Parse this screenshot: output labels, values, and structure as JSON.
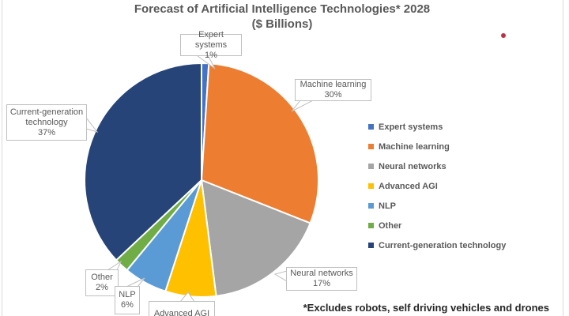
{
  "title": {
    "line1": "Forecast of Artificial Intelligence Technologies* 2028",
    "line2": "($ Billions)"
  },
  "footnote": "*Excludes robots, self driving vehicles and drones",
  "chart_data": {
    "type": "pie",
    "title": "Forecast of Artificial Intelligence Technologies* 2028 ($ Billions)",
    "categories": [
      "Expert systems",
      "Machine learning",
      "Neural networks",
      "Advanced AGI",
      "NLP",
      "Other",
      "Current-generation technology"
    ],
    "values": [
      1,
      30,
      17,
      7,
      6,
      2,
      37
    ],
    "unit": "percent share",
    "colors": [
      "#4472C4",
      "#ED7D31",
      "#A5A5A5",
      "#FFC000",
      "#5B9BD5",
      "#70AD47",
      "#264478"
    ],
    "start_angle_deg": 0,
    "direction": "clockwise",
    "legend_position": "right",
    "slice_border_color": "#FFFFFF",
    "note": "Advanced AGI callout is cut off at the image bottom; its 7% share is implied since shares sum to 100%"
  },
  "callouts": {
    "expert_systems": {
      "lines": [
        "Expert systems",
        "1%"
      ]
    },
    "machine_learning": {
      "lines": [
        "Machine learning",
        "30%"
      ]
    },
    "current_generation": {
      "lines": [
        "Current-generation",
        "technology",
        "37%"
      ]
    },
    "other": {
      "lines": [
        "Other",
        "2%"
      ]
    },
    "nlp": {
      "lines": [
        "NLP",
        "6%"
      ]
    },
    "advanced_agi": {
      "lines": [
        "Advanced AGI"
      ]
    },
    "neural_networks": {
      "lines": [
        "Neural networks",
        "17%"
      ]
    }
  },
  "marks": {
    "red_dot_color": "#BE3144"
  }
}
